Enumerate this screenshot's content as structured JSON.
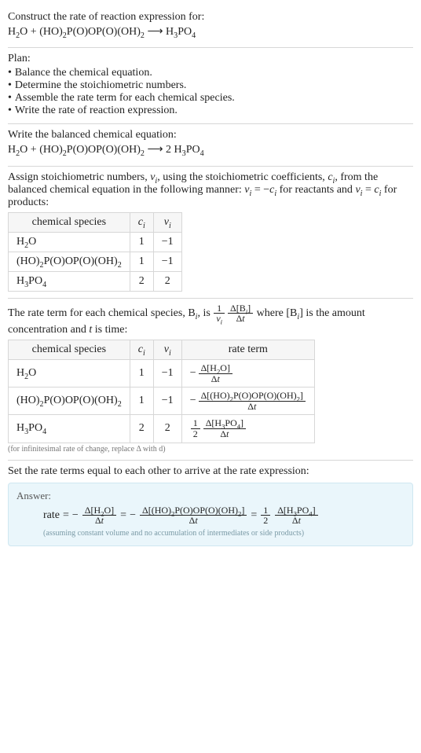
{
  "intro": {
    "prompt": "Construct the rate of reaction expression for:",
    "equation_lhs_a_html": "H<sub>2</sub>O",
    "plus": " + ",
    "equation_lhs_b_html": "(HO)<sub>2</sub>P(O)OP(O)(OH)<sub>2</sub>",
    "arrow": " ⟶ ",
    "equation_rhs_html": "H<sub>3</sub>PO<sub>4</sub>"
  },
  "plan": {
    "heading": "Plan:",
    "bullets": [
      "Balance the chemical equation.",
      "Determine the stoichiometric numbers.",
      "Assemble the rate term for each chemical species.",
      "Write the rate of reaction expression."
    ]
  },
  "balanced": {
    "heading": "Write the balanced chemical equation:",
    "lhs_a_html": "H<sub>2</sub>O",
    "lhs_b_html": "(HO)<sub>2</sub>P(O)OP(O)(OH)<sub>2</sub>",
    "rhs_html": "2 H<sub>3</sub>PO<sub>4</sub>"
  },
  "assign": {
    "text_html": "Assign stoichiometric numbers, <i>ν<sub>i</sub></i>, using the stoichiometric coefficients, <i>c<sub>i</sub></i>, from the balanced chemical equation in the following manner: <i>ν<sub>i</sub></i> = −<i>c<sub>i</sub></i> for reactants and <i>ν<sub>i</sub></i> = <i>c<sub>i</sub></i> for products:",
    "table": {
      "headers": [
        "chemical species",
        "c_i",
        "ν_i"
      ],
      "headers_html": [
        "chemical species",
        "<i>c<sub>i</sub></i>",
        "<i>ν<sub>i</sub></i>"
      ],
      "rows": [
        {
          "species_html": "H<sub>2</sub>O",
          "c": "1",
          "nu": "−1"
        },
        {
          "species_html": "(HO)<sub>2</sub>P(O)OP(O)(OH)<sub>2</sub>",
          "c": "1",
          "nu": "−1"
        },
        {
          "species_html": "H<sub>3</sub>PO<sub>4</sub>",
          "c": "2",
          "nu": "2"
        }
      ]
    }
  },
  "rateterm": {
    "pre_text_html": "The rate term for each chemical species, B<sub><i>i</i></sub>, is ",
    "frac1_num_html": "1",
    "frac1_den_html": "<i>ν<sub>i</sub></i>",
    "frac2_num_html": "Δ[B<sub><i>i</i></sub>]",
    "frac2_den_html": "Δ<i>t</i>",
    "post_text_html": " where [B<sub><i>i</i></sub>] is the amount concentration and <i>t</i> is time:",
    "table": {
      "headers_html": [
        "chemical species",
        "<i>c<sub>i</sub></i>",
        "<i>ν<sub>i</sub></i>",
        "rate term"
      ],
      "rows": [
        {
          "species_html": "H<sub>2</sub>O",
          "c": "1",
          "nu": "−1",
          "rate_prefix": "− ",
          "rate_num_html": "Δ[H<sub>2</sub>O]",
          "rate_den_html": "Δ<i>t</i>"
        },
        {
          "species_html": "(HO)<sub>2</sub>P(O)OP(O)(OH)<sub>2</sub>",
          "c": "1",
          "nu": "−1",
          "rate_prefix": "− ",
          "rate_num_html": "Δ[(HO)<sub>2</sub>P(O)OP(O)(OH)<sub>2</sub>]",
          "rate_den_html": "Δ<i>t</i>"
        },
        {
          "species_html": "H<sub>3</sub>PO<sub>4</sub>",
          "c": "2",
          "nu": "2",
          "rate_prefix_frac_num": "1",
          "rate_prefix_frac_den": "2",
          "rate_num_html": "Δ[H<sub>3</sub>PO<sub>4</sub>]",
          "rate_den_html": "Δ<i>t</i>"
        }
      ]
    },
    "note": "(for infinitesimal rate of change, replace Δ with d)"
  },
  "final": {
    "heading": "Set the rate terms equal to each other to arrive at the rate expression:",
    "answer_label": "Answer:",
    "rate_label": "rate",
    "eq": "=",
    "minus": "−",
    "terms": [
      {
        "num_html": "Δ[H<sub>2</sub>O]",
        "den_html": "Δ<i>t</i>",
        "neg": true
      },
      {
        "num_html": "Δ[(HO)<sub>2</sub>P(O)OP(O)(OH)<sub>2</sub>]",
        "den_html": "Δ<i>t</i>",
        "neg": true
      },
      {
        "coef_num": "1",
        "coef_den": "2",
        "num_html": "Δ[H<sub>3</sub>PO<sub>4</sub>]",
        "den_html": "Δ<i>t</i>",
        "neg": false
      }
    ],
    "note": "(assuming constant volume and no accumulation of intermediates or side products)"
  },
  "style": {
    "border_color": "#d7d7d7",
    "answer_bg": "#eaf6fb",
    "answer_border": "#cfe7f1",
    "note_color": "#7a9aa6"
  }
}
